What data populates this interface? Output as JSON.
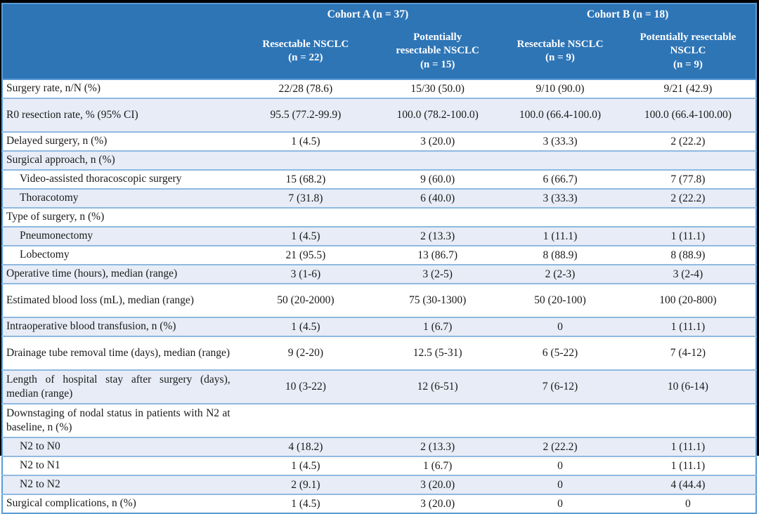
{
  "table": {
    "header": {
      "cohort_a": "Cohort A (n = 37)",
      "cohort_b": "Cohort B (n = 18)",
      "columns": [
        "Resectable NSCLC\n(n = 22)",
        "Potentially\nresectable NSCLC\n(n = 15)",
        "Resectable NSCLC\n(n = 9)",
        "Potentially resectable\nNSCLC\n(n = 9)"
      ]
    },
    "rows": [
      {
        "label": "Surgery rate, n/N (%)",
        "indent": false,
        "tall": false,
        "values": [
          "22/28 (78.6)",
          "15/30 (50.0)",
          "9/10 (90.0)",
          "9/21 (42.9)"
        ]
      },
      {
        "label": "R0 resection rate, % (95% CI)",
        "indent": false,
        "tall": true,
        "values": [
          "95.5 (77.2-99.9)",
          "100.0 (78.2-100.0)",
          "100.0 (66.4-100.0)",
          "100.0 (66.4-100.00)"
        ]
      },
      {
        "label": "Delayed surgery, n (%)",
        "indent": false,
        "tall": false,
        "values": [
          "1 (4.5)",
          "3 (20.0)",
          "3 (33.3)",
          "2 (22.2)"
        ]
      },
      {
        "label": "Surgical approach, n (%)",
        "indent": false,
        "tall": false,
        "values": [
          "",
          "",
          "",
          ""
        ]
      },
      {
        "label": "Video-assisted thoracoscopic surgery",
        "indent": true,
        "tall": false,
        "values": [
          "15 (68.2)",
          "9 (60.0)",
          "6 (66.7)",
          "7 (77.8)"
        ]
      },
      {
        "label": "Thoracotomy",
        "indent": true,
        "tall": false,
        "values": [
          "7 (31.8)",
          "6 (40.0)",
          "3 (33.3)",
          "2 (22.2)"
        ]
      },
      {
        "label": "Type of surgery, n (%)",
        "indent": false,
        "tall": false,
        "values": [
          "",
          "",
          "",
          ""
        ]
      },
      {
        "label": "Pneumonectomy",
        "indent": true,
        "tall": false,
        "values": [
          "1 (4.5)",
          "2 (13.3)",
          "1 (11.1)",
          "1 (11.1)"
        ]
      },
      {
        "label": "Lobectomy",
        "indent": true,
        "tall": false,
        "values": [
          "21 (95.5)",
          "13 (86.7)",
          "8 (88.9)",
          "8 (88.9)"
        ]
      },
      {
        "label": "Operative time (hours), median (range)",
        "indent": false,
        "tall": false,
        "values": [
          "3 (1-6)",
          "3 (2-5)",
          "2 (2-3)",
          "3 (2-4)"
        ]
      },
      {
        "label": "Estimated blood loss (mL), median (range)",
        "indent": false,
        "tall": true,
        "values": [
          "50 (20-2000)",
          "75 (30-1300)",
          "50 (20-100)",
          "100 (20-800)"
        ]
      },
      {
        "label": "Intraoperative blood transfusion, n (%)",
        "indent": false,
        "tall": false,
        "values": [
          "1 (4.5)",
          "1 (6.7)",
          "0",
          "1 (11.1)"
        ]
      },
      {
        "label": "Drainage tube removal time (days), median (range)",
        "indent": false,
        "tall": true,
        "values": [
          "9 (2-20)",
          "12.5 (5-31)",
          "6 (5-22)",
          "7 (4-12)"
        ]
      },
      {
        "label": "Length of hospital stay after surgery (days), median (range)",
        "indent": false,
        "tall": true,
        "values": [
          "10 (3-22)",
          "12 (6-51)",
          "7 (6-12)",
          "10 (6-14)"
        ]
      },
      {
        "label": "Downstaging of nodal status in patients with N2 at baseline, n (%)",
        "indent": false,
        "tall": true,
        "values": [
          "",
          "",
          "",
          ""
        ]
      },
      {
        "label": "N2 to N0",
        "indent": true,
        "tall": false,
        "values": [
          "4 (18.2)",
          "2 (13.3)",
          "2 (22.2)",
          "1 (11.1)"
        ]
      },
      {
        "label": "N2 to N1",
        "indent": true,
        "tall": false,
        "values": [
          "1 (4.5)",
          "1 (6.7)",
          "0",
          "1 (11.1)"
        ]
      },
      {
        "label": "N2 to N2",
        "indent": true,
        "tall": false,
        "values": [
          "2 (9.1)",
          "3 (20.0)",
          "0",
          "4 (44.4)"
        ]
      },
      {
        "label": "Surgical complications, n (%)",
        "indent": false,
        "tall": false,
        "values": [
          "1 (4.5)",
          "3 (20.0)",
          "0",
          "0"
        ]
      }
    ]
  },
  "colors": {
    "frame": "#000000",
    "header_bg": "#2E75B6",
    "header_text": "#FFFFFF",
    "outer_border": "#5B9BD5",
    "row_border": "#8FB9E0",
    "row_alt": "#E7ECF6"
  }
}
